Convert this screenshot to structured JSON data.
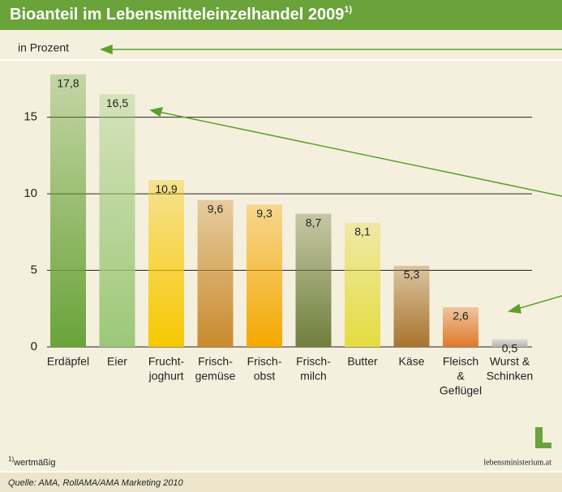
{
  "chart_data": {
    "type": "bar",
    "title": "Bioanteil im Lebensmitteleinzelhandel 2009",
    "title_note": "1)",
    "y_label": "in Prozent",
    "categories": [
      [
        "Erdäpfel"
      ],
      [
        "Eier"
      ],
      [
        "Frucht-",
        "joghurt"
      ],
      [
        "Frisch-",
        "gemüse"
      ],
      [
        "Frisch-",
        "obst"
      ],
      [
        "Frisch-",
        "milch"
      ],
      [
        "Butter"
      ],
      [
        "Käse"
      ],
      [
        "Fleisch",
        "&",
        "Geflügel"
      ],
      [
        "Wurst &",
        "Schinken"
      ]
    ],
    "values": [
      17.8,
      16.5,
      10.9,
      9.6,
      9.3,
      8.7,
      8.1,
      5.3,
      2.6,
      0.5
    ],
    "value_labels": [
      "17,8",
      "16,5",
      "10,9",
      "9,6",
      "9,3",
      "8,7",
      "8,1",
      "5,3",
      "2,6",
      "0,5"
    ],
    "colors": [
      "#6aa33a",
      "#9cc878",
      "#f7c800",
      "#c98a2c",
      "#f5a800",
      "#6f7e3c",
      "#e4dc40",
      "#a8742e",
      "#e0782a",
      "#b4b4b4"
    ],
    "ylim": [
      0,
      18
    ],
    "yticks": [
      0,
      5,
      10,
      15
    ],
    "grid": true,
    "footnote": "wertmäßig",
    "footnote_mark": "1)",
    "source": "Quelle: AMA, RollAMA/AMA Marketing 2010",
    "logo": "lebensministerium.at"
  }
}
